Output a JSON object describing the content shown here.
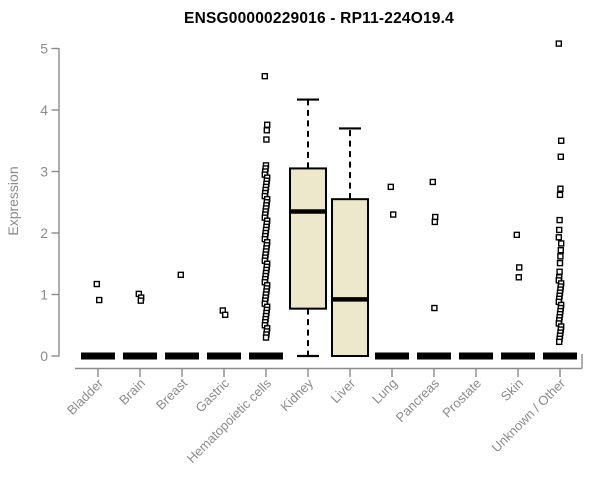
{
  "page": {
    "background": "#ffffff"
  },
  "chart_data": {
    "type": "boxplot",
    "title": "ENSG00000229016 - RP11-224O19.4",
    "ylabel": "Expression",
    "xlabel": "",
    "ylim": [
      0,
      5
    ],
    "yticks": [
      0,
      1,
      2,
      3,
      4,
      5
    ],
    "grid": false,
    "legend": false,
    "colors": {
      "box_fill": "#EDE8CC",
      "box_stroke": "#000000",
      "median": "#000000",
      "outlier_stroke": "#000000",
      "outlier_fill": "#ffffff",
      "axis": "#8b8b8b",
      "tick_text": "#8b8b8b",
      "title_text": "#000000"
    },
    "categories": [
      "Bladder",
      "Brain",
      "Breast",
      "Gastric",
      "Hematopoietic cells",
      "Kidney",
      "Liver",
      "Lung",
      "Pancreas",
      "Prostate",
      "Skin",
      "Unknown / Other"
    ],
    "series": [
      {
        "category": "Bladder",
        "q1": 0,
        "median": 0,
        "q3": 0,
        "whisker_low": 0,
        "whisker_high": 0,
        "outliers": [
          1.17,
          0.91
        ]
      },
      {
        "category": "Brain",
        "q1": 0,
        "median": 0,
        "q3": 0,
        "whisker_low": 0,
        "whisker_high": 0,
        "outliers": [
          1.01,
          0.95,
          0.9
        ]
      },
      {
        "category": "Breast",
        "q1": 0,
        "median": 0,
        "q3": 0,
        "whisker_low": 0,
        "whisker_high": 0,
        "outliers": [
          1.32
        ]
      },
      {
        "category": "Gastric",
        "q1": 0,
        "median": 0,
        "q3": 0,
        "whisker_low": 0,
        "whisker_high": 0,
        "outliers": [
          0.74,
          0.67
        ]
      },
      {
        "category": "Hematopoietic cells",
        "q1": 0,
        "median": 0,
        "q3": 0,
        "whisker_low": 0,
        "whisker_high": 0,
        "outliers": [
          4.55,
          3.76,
          3.67,
          3.52,
          3.1,
          3.05,
          3.0,
          2.95,
          2.9,
          2.85,
          2.8,
          2.75,
          2.7,
          2.65,
          2.6,
          2.55,
          2.5,
          2.45,
          2.4,
          2.35,
          2.3,
          2.25,
          2.2,
          2.15,
          2.1,
          2.05,
          2.0,
          1.95,
          1.9,
          1.85,
          1.8,
          1.75,
          1.7,
          1.65,
          1.6,
          1.55,
          1.5,
          1.45,
          1.4,
          1.35,
          1.3,
          1.25,
          1.2,
          1.15,
          1.1,
          1.05,
          1.0,
          0.95,
          0.9,
          0.85,
          0.8,
          0.75,
          0.7,
          0.65,
          0.6,
          0.55,
          0.5,
          0.45,
          0.4,
          0.35,
          0.3
        ]
      },
      {
        "category": "Kidney",
        "q1": 0.77,
        "median": 2.35,
        "q3": 3.05,
        "whisker_low": 0,
        "whisker_high": 4.17,
        "outliers": []
      },
      {
        "category": "Liver",
        "q1": 0,
        "median": 0.92,
        "q3": 2.55,
        "whisker_low": 0,
        "whisker_high": 3.7,
        "outliers": []
      },
      {
        "category": "Lung",
        "q1": 0,
        "median": 0,
        "q3": 0,
        "whisker_low": 0,
        "whisker_high": 0,
        "outliers": [
          2.75,
          2.3
        ]
      },
      {
        "category": "Pancreas",
        "q1": 0,
        "median": 0,
        "q3": 0,
        "whisker_low": 0,
        "whisker_high": 0,
        "outliers": [
          2.83,
          2.26,
          2.18,
          0.78
        ]
      },
      {
        "category": "Prostate",
        "q1": 0,
        "median": 0,
        "q3": 0,
        "whisker_low": 0,
        "whisker_high": 0,
        "outliers": []
      },
      {
        "category": "Skin",
        "q1": 0,
        "median": 0,
        "q3": 0,
        "whisker_low": 0,
        "whisker_high": 0,
        "outliers": [
          1.97,
          1.44,
          1.28
        ]
      },
      {
        "category": "Unknown / Other",
        "q1": 0,
        "median": 0,
        "q3": 0,
        "whisker_low": 0,
        "whisker_high": 0,
        "outliers": [
          5.08,
          3.5,
          3.24,
          2.72,
          2.62,
          2.21,
          2.05,
          1.93,
          1.83,
          1.72,
          1.62,
          1.51,
          1.37,
          1.28,
          1.23,
          1.18,
          1.13,
          1.08,
          1.03,
          0.98,
          0.93,
          0.88,
          0.83,
          0.78,
          0.73,
          0.68,
          0.63,
          0.58,
          0.53,
          0.48,
          0.43,
          0.38,
          0.33,
          0.28,
          0.23
        ]
      }
    ]
  }
}
